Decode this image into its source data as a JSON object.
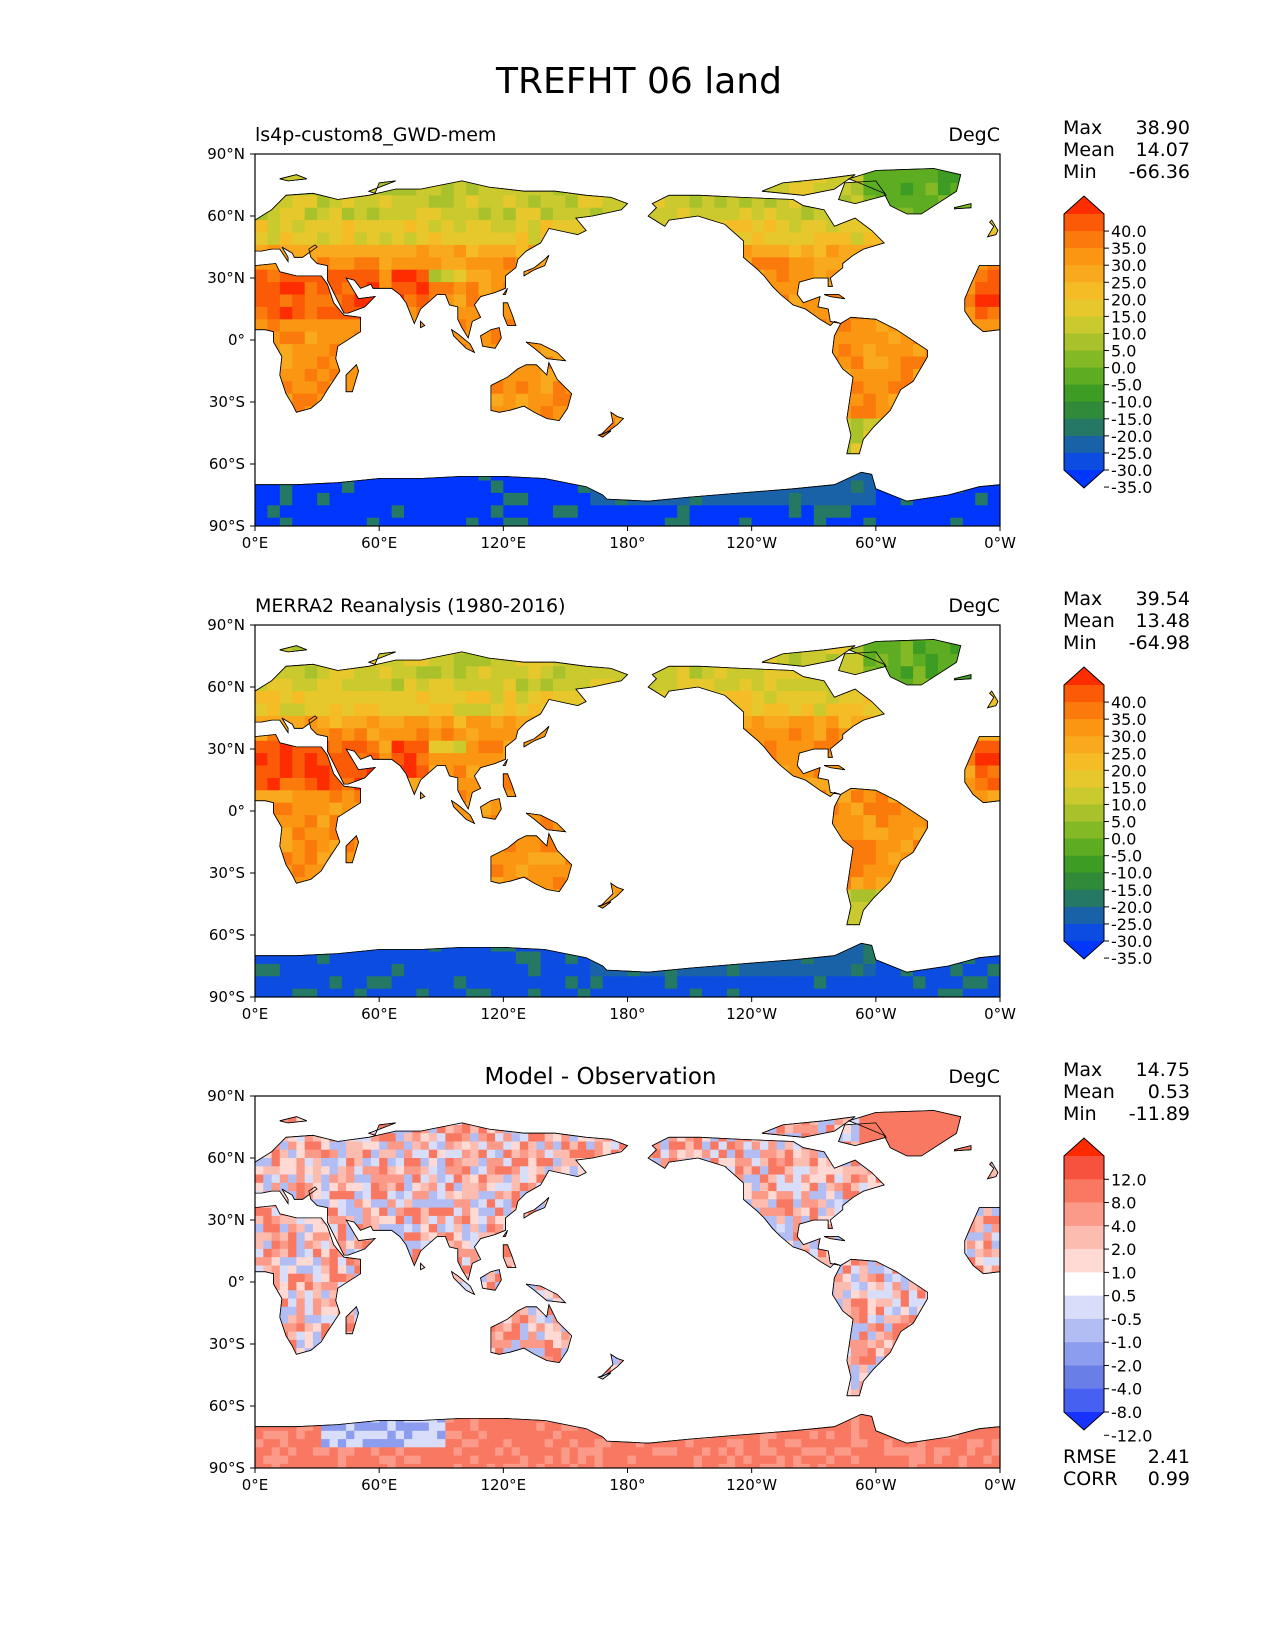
{
  "figure": {
    "title": "TREFHT 06 land",
    "xticks": [
      "0°E",
      "60°E",
      "120°E",
      "180°",
      "120°W",
      "60°W",
      "0°W"
    ],
    "yticks": [
      "90°N",
      "60°N",
      "30°N",
      "0°",
      "30°S",
      "60°S",
      "90°S"
    ]
  },
  "chart_data": [
    {
      "type": "heatmap",
      "panel": "test",
      "left_title": "ls4p-custom8_GWD-mem",
      "center_title": "",
      "units": "DegC",
      "stats": [
        {
          "label": "Max",
          "value": "38.90"
        },
        {
          "label": "Mean",
          "value": "14.07"
        },
        {
          "label": "Min",
          "value": "-66.36"
        }
      ],
      "colorbar": {
        "labels": [
          "40.0",
          "35.0",
          "30.0",
          "25.0",
          "20.0",
          "15.0",
          "10.0",
          "5.0",
          "0.0",
          "-5.0",
          "-10.0",
          "-15.0",
          "-20.0",
          "-25.0",
          "-30.0",
          "-35.0"
        ],
        "colors": [
          "#fd2d00",
          "#fb5a07",
          "#fa7a0c",
          "#fa9612",
          "#f9a91d",
          "#f5bc26",
          "#e6c82c",
          "#cac92e",
          "#a9c22b",
          "#83b925",
          "#5eac22",
          "#3c9c23",
          "#2f8a39",
          "#257863",
          "#1a62a8",
          "#0c4ce0",
          "#0036ff"
        ]
      },
      "map_style": "temperature",
      "antarctica_cold": true
    },
    {
      "type": "heatmap",
      "panel": "reference",
      "left_title": "MERRA2 Reanalysis (1980-2016)",
      "center_title": "",
      "units": "DegC",
      "stats": [
        {
          "label": "Max",
          "value": "39.54"
        },
        {
          "label": "Mean",
          "value": "13.48"
        },
        {
          "label": "Min",
          "value": "-64.98"
        }
      ],
      "colorbar": {
        "labels": [
          "40.0",
          "35.0",
          "30.0",
          "25.0",
          "20.0",
          "15.0",
          "10.0",
          "5.0",
          "0.0",
          "-5.0",
          "-10.0",
          "-15.0",
          "-20.0",
          "-25.0",
          "-30.0",
          "-35.0"
        ],
        "colors": [
          "#fd2d00",
          "#fb5a07",
          "#fa7a0c",
          "#fa9612",
          "#f9a91d",
          "#f5bc26",
          "#e6c82c",
          "#cac92e",
          "#a9c22b",
          "#83b925",
          "#5eac22",
          "#3c9c23",
          "#2f8a39",
          "#257863",
          "#1a62a8",
          "#0c4ce0",
          "#0036ff"
        ]
      },
      "map_style": "temperature",
      "antarctica_cold": true
    },
    {
      "type": "heatmap",
      "panel": "difference",
      "left_title": "",
      "center_title": "Model - Observation",
      "units": "DegC",
      "stats": [
        {
          "label": "Max",
          "value": "14.75"
        },
        {
          "label": "Mean",
          "value": "0.53"
        },
        {
          "label": "Min",
          "value": "-11.89"
        }
      ],
      "extra_stats": [
        {
          "label": "RMSE",
          "value": "2.41"
        },
        {
          "label": "CORR",
          "value": "0.99"
        }
      ],
      "colorbar": {
        "labels": [
          "12.0",
          "8.0",
          "4.0",
          "2.0",
          "1.0",
          "0.5",
          "-0.5",
          "-1.0",
          "-2.0",
          "-4.0",
          "-8.0",
          "-12.0"
        ],
        "colors": [
          "#ff2a00",
          "#f6523e",
          "#f97862",
          "#fb9a88",
          "#fdbcb0",
          "#ffdad5",
          "#ffffff",
          "#d8def9",
          "#b2bdf4",
          "#8c9cee",
          "#6a7ee8",
          "#4660f2",
          "#1633ff"
        ]
      },
      "map_style": "difference",
      "antarctica_cold": false
    }
  ]
}
